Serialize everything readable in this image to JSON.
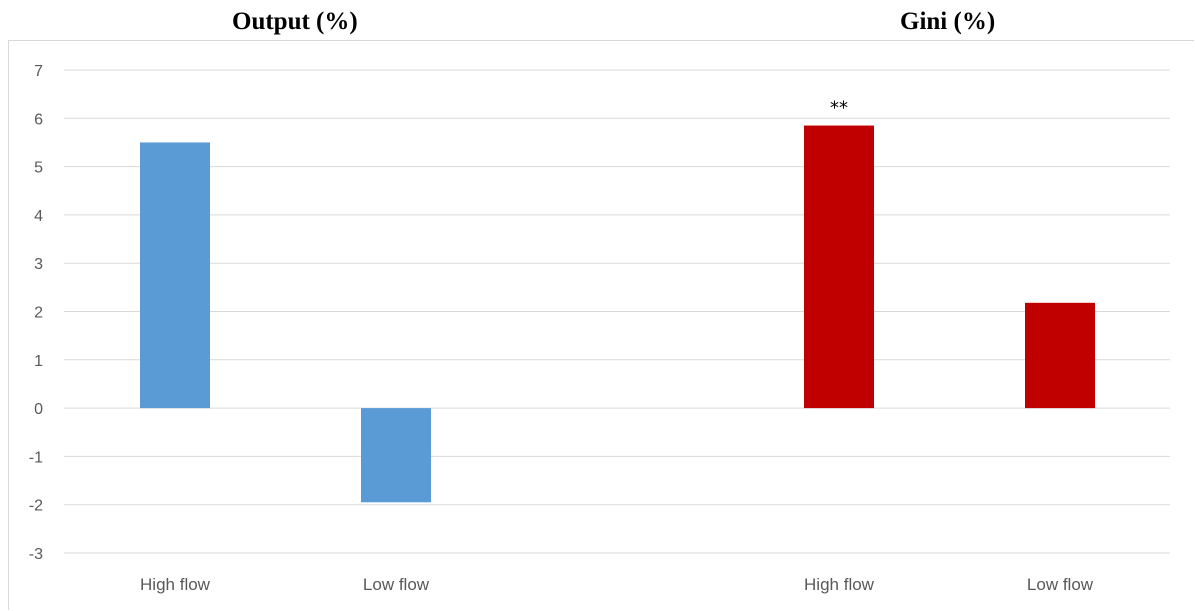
{
  "chart_data": {
    "type": "bar",
    "panels": [
      {
        "title": "Output (%)",
        "categories": [
          "High flow",
          "Low flow"
        ],
        "values": [
          5.5,
          -1.95
        ],
        "color": "#5b9bd5"
      },
      {
        "title": "Gini (%)",
        "categories": [
          "High flow",
          "Low flow"
        ],
        "values": [
          5.85,
          2.18
        ],
        "color": "#c00000",
        "annotations": [
          "**",
          ""
        ]
      }
    ],
    "yticks": [
      "7",
      "6",
      "5",
      "4",
      "3",
      "2",
      "1",
      "0",
      "-1",
      "-2",
      "-3"
    ],
    "ylim": [
      -3,
      7
    ],
    "grid": true,
    "gridColor": "#d9d9d9",
    "tickColor": "#595959"
  }
}
